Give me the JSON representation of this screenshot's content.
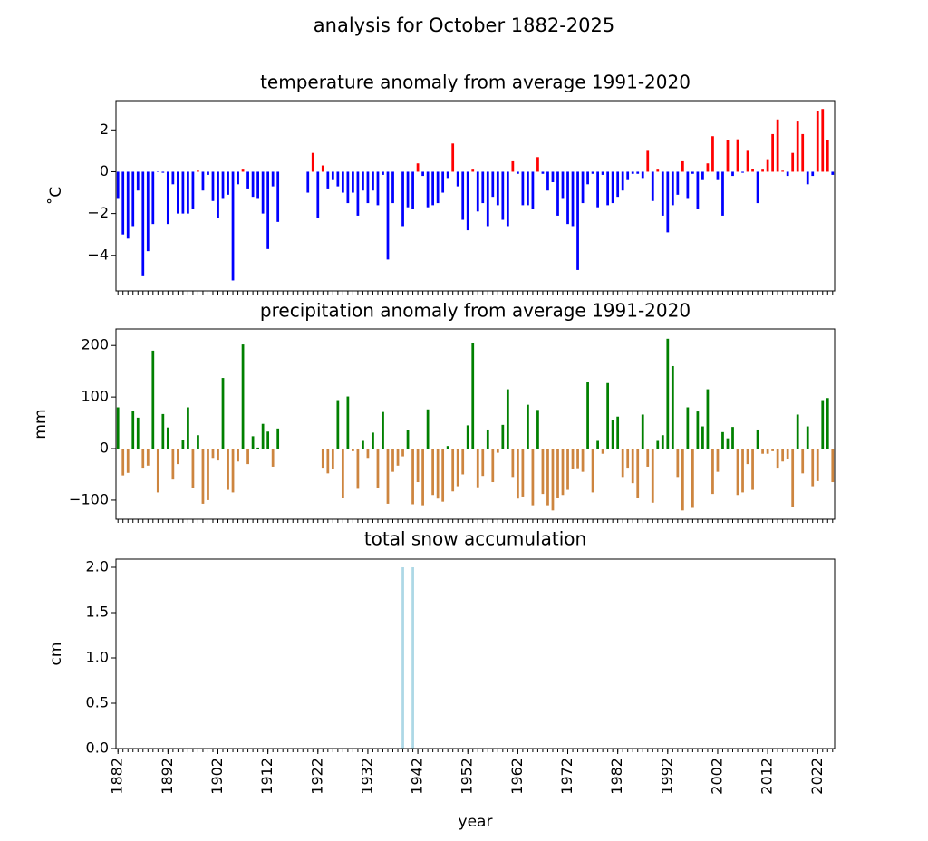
{
  "title": "analysis for October 1882-2025",
  "chart_data": [
    {
      "type": "bar",
      "title": "temperature anomaly from average 1991-2020",
      "ylabel": "˚C",
      "colors": {
        "positive": "#ff0000",
        "negative": "#0000ff"
      },
      "x": [
        1882,
        1883,
        1884,
        1885,
        1886,
        1887,
        1888,
        1889,
        1890,
        1891,
        1892,
        1893,
        1894,
        1895,
        1896,
        1897,
        1898,
        1899,
        1900,
        1901,
        1902,
        1903,
        1904,
        1905,
        1906,
        1907,
        1908,
        1909,
        1910,
        1911,
        1912,
        1913,
        1914,
        1915,
        1916,
        1917,
        1918,
        1919,
        1920,
        1921,
        1922,
        1923,
        1924,
        1925,
        1926,
        1927,
        1928,
        1929,
        1930,
        1931,
        1932,
        1933,
        1934,
        1935,
        1936,
        1937,
        1938,
        1939,
        1940,
        1941,
        1942,
        1943,
        1944,
        1945,
        1946,
        1947,
        1948,
        1949,
        1950,
        1951,
        1952,
        1953,
        1954,
        1955,
        1956,
        1957,
        1958,
        1959,
        1960,
        1961,
        1962,
        1963,
        1964,
        1965,
        1966,
        1967,
        1968,
        1969,
        1970,
        1971,
        1972,
        1973,
        1974,
        1975,
        1976,
        1977,
        1978,
        1979,
        1980,
        1981,
        1982,
        1983,
        1984,
        1985,
        1986,
        1987,
        1988,
        1989,
        1990,
        1991,
        1992,
        1993,
        1994,
        1995,
        1996,
        1997,
        1998,
        1999,
        2000,
        2001,
        2002,
        2003,
        2004,
        2005,
        2006,
        2007,
        2008,
        2009,
        2010,
        2011,
        2012,
        2013,
        2014,
        2015,
        2016,
        2017,
        2018,
        2019,
        2020,
        2021,
        2022,
        2023,
        2024,
        2025
      ],
      "values": [
        -1.3,
        -3.0,
        -3.2,
        -2.6,
        -0.9,
        -5.0,
        -3.8,
        -2.5,
        -0.02,
        -0.05,
        -2.5,
        -0.6,
        -2.0,
        -2.0,
        -2.0,
        -1.8,
        0.05,
        -0.9,
        -0.15,
        -1.4,
        -2.2,
        -1.3,
        -1.1,
        -5.2,
        -0.6,
        0.1,
        -0.8,
        -1.2,
        -1.3,
        -2.0,
        -3.7,
        -0.7,
        -2.4,
        null,
        null,
        null,
        null,
        null,
        -1.0,
        0.9,
        -2.2,
        0.3,
        -0.8,
        -0.4,
        -0.7,
        -1.0,
        -1.5,
        -1.0,
        -2.1,
        -0.9,
        -1.5,
        -0.9,
        -1.6,
        -0.15,
        -4.2,
        -1.5,
        0.0,
        -2.6,
        -1.7,
        -1.8,
        0.4,
        -0.2,
        -1.7,
        -1.6,
        -1.5,
        -1.0,
        -0.3,
        1.35,
        -0.7,
        -2.3,
        -2.8,
        0.1,
        -1.9,
        -1.5,
        -2.6,
        -1.2,
        -1.6,
        -2.3,
        -2.6,
        0.5,
        -0.1,
        -1.6,
        -1.6,
        -1.8,
        0.7,
        -0.1,
        -0.9,
        -0.5,
        -2.1,
        -1.3,
        -2.5,
        -2.6,
        -4.7,
        -1.5,
        -0.6,
        -0.1,
        -1.7,
        -0.15,
        -1.6,
        -1.5,
        -1.2,
        -0.9,
        -0.4,
        -0.1,
        -0.1,
        -0.3,
        1.0,
        -1.4,
        0.1,
        -2.1,
        -2.9,
        -1.6,
        -1.1,
        0.5,
        -1.3,
        -0.1,
        -1.8,
        -0.4,
        0.4,
        1.7,
        -0.4,
        -2.1,
        1.5,
        -0.2,
        1.55,
        -0.05,
        1.0,
        0.15,
        -1.5,
        0.1,
        0.6,
        1.8,
        2.5,
        0.05,
        -0.2,
        0.9,
        2.4,
        1.8,
        -0.6,
        -0.2,
        2.9,
        3.0,
        1.5,
        -0.15
      ],
      "xlim": [
        1881.6,
        2025.4
      ],
      "ylim": [
        -5.7,
        3.4
      ],
      "yticks": [
        {
          "value": -4,
          "label": "−4"
        },
        {
          "value": -2,
          "label": "−2"
        },
        0,
        2
      ]
    },
    {
      "type": "bar",
      "title": "precipitation anomaly from average 1991-2020",
      "ylabel": "mm",
      "colors": {
        "positive": "#008000",
        "negative": "#cd853f"
      },
      "x": [
        1882,
        1883,
        1884,
        1885,
        1886,
        1887,
        1888,
        1889,
        1890,
        1891,
        1892,
        1893,
        1894,
        1895,
        1896,
        1897,
        1898,
        1899,
        1900,
        1901,
        1902,
        1903,
        1904,
        1905,
        1906,
        1907,
        1908,
        1909,
        1910,
        1911,
        1912,
        1913,
        1914,
        1915,
        1916,
        1917,
        1918,
        1919,
        1920,
        1921,
        1922,
        1923,
        1924,
        1925,
        1926,
        1927,
        1928,
        1929,
        1930,
        1931,
        1932,
        1933,
        1934,
        1935,
        1936,
        1937,
        1938,
        1939,
        1940,
        1941,
        1942,
        1943,
        1944,
        1945,
        1946,
        1947,
        1948,
        1949,
        1950,
        1951,
        1952,
        1953,
        1954,
        1955,
        1956,
        1957,
        1958,
        1959,
        1960,
        1961,
        1962,
        1963,
        1964,
        1965,
        1966,
        1967,
        1968,
        1969,
        1970,
        1971,
        1972,
        1973,
        1974,
        1975,
        1976,
        1977,
        1978,
        1979,
        1980,
        1981,
        1982,
        1983,
        1984,
        1985,
        1986,
        1987,
        1988,
        1989,
        1990,
        1991,
        1992,
        1993,
        1994,
        1995,
        1996,
        1997,
        1998,
        1999,
        2000,
        2001,
        2002,
        2003,
        2004,
        2005,
        2006,
        2007,
        2008,
        2009,
        2010,
        2011,
        2012,
        2013,
        2014,
        2015,
        2016,
        2017,
        2018,
        2019,
        2020,
        2021,
        2022,
        2023,
        2024,
        2025
      ],
      "values": [
        80,
        -52,
        -47,
        73,
        60,
        -37,
        -33,
        190,
        -85,
        67,
        41,
        -60,
        -30,
        16,
        80,
        -76,
        26,
        -107,
        -100,
        -18,
        -23,
        137,
        -80,
        -85,
        -25,
        202,
        -30,
        24,
        2,
        48,
        33,
        -35,
        39,
        null,
        null,
        null,
        null,
        null,
        null,
        null,
        null,
        -37,
        -48,
        -40,
        94,
        -95,
        101,
        -5,
        -78,
        15,
        -18,
        31,
        -77,
        71,
        -107,
        -45,
        -33,
        -15,
        36,
        -108,
        -65,
        -110,
        76,
        -90,
        -97,
        -103,
        5,
        -83,
        -73,
        -50,
        45,
        205,
        -75,
        -53,
        37,
        -65,
        -8,
        46,
        115,
        -55,
        -97,
        -93,
        85,
        -110,
        75,
        -88,
        -110,
        -120,
        -95,
        -90,
        -80,
        -40,
        -38,
        -45,
        130,
        -85,
        15,
        -10,
        127,
        55,
        62,
        -55,
        -37,
        -67,
        -95,
        66,
        -35,
        -105,
        15,
        26,
        213,
        160,
        -55,
        -120,
        80,
        -115,
        72,
        43,
        115,
        -88,
        -45,
        32,
        20,
        42,
        -90,
        -85,
        -30,
        -80,
        37,
        -10,
        -10,
        -5,
        -37,
        -25,
        -20,
        -113,
        66,
        -48,
        43,
        -73,
        -63,
        94,
        98,
        -65
      ],
      "xlim": [
        1881.6,
        2025.4
      ],
      "ylim": [
        -137,
        232
      ],
      "yticks": [
        {
          "value": -100,
          "label": "−100"
        },
        0,
        100,
        200
      ]
    },
    {
      "type": "bar",
      "title": "total snow accumulation",
      "ylabel": "cm",
      "xlabel": "year",
      "color": "#add8e6",
      "x": [
        1882,
        1883,
        1884,
        1885,
        1886,
        1887,
        1888,
        1889,
        1890,
        1891,
        1892,
        1893,
        1894,
        1895,
        1896,
        1897,
        1898,
        1899,
        1900,
        1901,
        1902,
        1903,
        1904,
        1905,
        1906,
        1907,
        1908,
        1909,
        1910,
        1911,
        1912,
        1913,
        1914,
        1915,
        1916,
        1917,
        1918,
        1919,
        1920,
        1921,
        1922,
        1923,
        1924,
        1925,
        1926,
        1927,
        1928,
        1929,
        1930,
        1931,
        1932,
        1933,
        1934,
        1935,
        1936,
        1937,
        1938,
        1939,
        1940,
        1941,
        1942,
        1943,
        1944,
        1945,
        1946,
        1947,
        1948,
        1949,
        1950,
        1951,
        1952,
        1953,
        1954,
        1955,
        1956,
        1957,
        1958,
        1959,
        1960,
        1961,
        1962,
        1963,
        1964,
        1965,
        1966,
        1967,
        1968,
        1969,
        1970,
        1971,
        1972,
        1973,
        1974,
        1975,
        1976,
        1977,
        1978,
        1979,
        1980,
        1981,
        1982,
        1983,
        1984,
        1985,
        1986,
        1987,
        1988,
        1989,
        1990,
        1991,
        1992,
        1993,
        1994,
        1995,
        1996,
        1997,
        1998,
        1999,
        2000,
        2001,
        2002,
        2003,
        2004,
        2005,
        2006,
        2007,
        2008,
        2009,
        2010,
        2011,
        2012,
        2013,
        2014,
        2015,
        2016,
        2017,
        2018,
        2019,
        2020,
        2021,
        2022,
        2023,
        2024,
        2025
      ],
      "values": [
        0,
        0,
        0,
        0,
        0,
        0,
        0,
        0,
        0,
        0,
        0,
        0,
        0,
        0,
        0,
        0,
        0,
        0,
        0,
        0,
        0,
        0,
        0,
        0,
        0,
        0,
        0,
        0,
        0,
        0,
        0,
        0,
        0,
        0,
        0,
        0,
        0,
        0,
        0,
        0,
        0,
        0,
        0,
        0,
        0,
        0,
        0,
        0,
        0,
        0,
        0,
        0,
        0,
        0,
        0,
        0,
        0,
        2.0,
        0,
        2.0,
        0,
        0,
        0,
        0,
        0,
        0,
        0,
        0,
        0,
        0,
        0,
        0,
        0,
        0,
        0,
        0,
        0,
        0,
        0,
        0,
        0,
        0,
        0,
        0,
        0,
        0,
        0,
        0,
        0,
        0,
        0,
        0,
        0,
        0,
        0,
        0,
        0,
        0,
        0,
        0,
        0,
        0,
        0,
        0,
        0,
        0,
        0,
        0,
        0,
        0,
        0,
        0,
        0,
        0,
        0,
        0,
        0,
        0,
        0,
        0,
        0,
        0,
        0,
        0,
        0,
        0,
        0,
        0,
        0,
        0,
        0,
        0,
        0,
        0,
        0,
        0,
        0,
        0,
        0,
        0,
        0,
        0,
        0,
        0
      ],
      "xlim": [
        1881.6,
        2025.4
      ],
      "ylim": [
        0,
        2.09
      ],
      "yticks": [
        {
          "value": 0,
          "label": "0.0"
        },
        {
          "value": 0.5,
          "label": "0.5"
        },
        {
          "value": 1,
          "label": "1.0"
        },
        {
          "value": 1.5,
          "label": "1.5"
        },
        {
          "value": 2,
          "label": "2.0"
        }
      ],
      "xticks": [
        1882,
        1892,
        1902,
        1912,
        1922,
        1932,
        1942,
        1952,
        1962,
        1972,
        1982,
        1992,
        2002,
        2012,
        2022
      ]
    }
  ]
}
